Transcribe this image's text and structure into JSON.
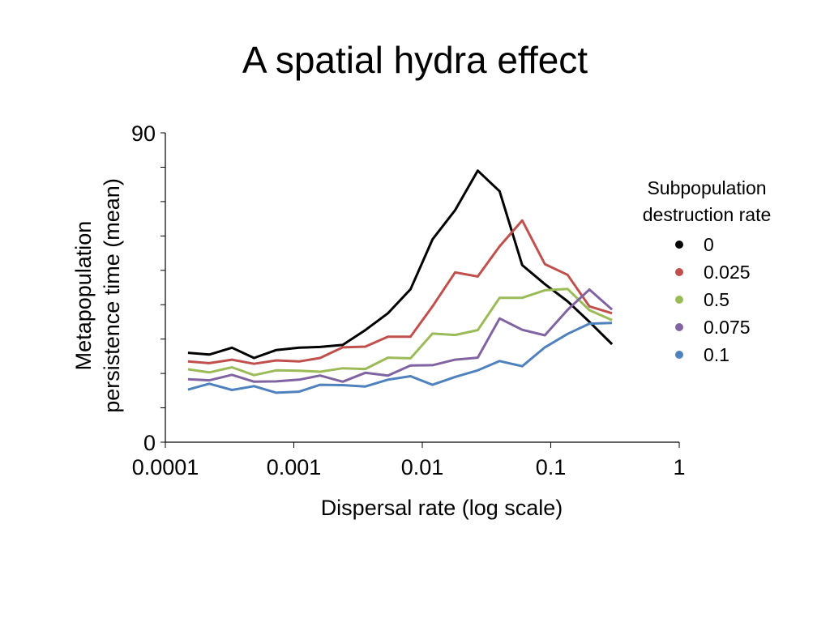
{
  "title": "A spatial hydra effect",
  "chart_data": {
    "type": "line",
    "title": "A spatial hydra effect",
    "xlabel": "Dispersal rate (log scale)",
    "ylabel_lines": [
      "Metapopulation",
      "persistence time (mean)"
    ],
    "x_scale": "log",
    "xlim": [
      0.0001,
      1
    ],
    "ylim": [
      0,
      90
    ],
    "x_tick_labels": [
      "0.0001",
      "0.001",
      "0.01",
      "0.1",
      "1"
    ],
    "x_tick_values": [
      0.0001,
      0.001,
      0.01,
      0.1,
      1
    ],
    "y_tick_labels": [
      "0",
      "90"
    ],
    "y_tick_values": [
      0,
      90
    ],
    "y_minor_step": 10,
    "grid": false,
    "legend": {
      "title_lines": [
        "Subpopulation",
        "destruction rate"
      ],
      "placement": "right"
    },
    "x": [
      0.00015,
      0.00022,
      0.00033,
      0.00049,
      0.00073,
      0.0011,
      0.0016,
      0.0024,
      0.0036,
      0.0054,
      0.0081,
      0.012,
      0.018,
      0.027,
      0.04,
      0.06,
      0.09,
      0.135,
      0.2,
      0.3
    ],
    "series": [
      {
        "name": "0",
        "color": "#000000",
        "values": [
          26,
          25.5,
          27.5,
          24.5,
          26.8,
          27.5,
          27.7,
          28.3,
          32.6,
          37.5,
          44.5,
          59,
          67.5,
          79,
          73,
          51.5,
          46,
          41,
          35,
          28.5
        ]
      },
      {
        "name": "0.025",
        "color": "#c0504d",
        "values": [
          23.5,
          23,
          24,
          22.8,
          23.8,
          23.5,
          24.5,
          27.6,
          27.8,
          30.7,
          30.7,
          39.5,
          49.4,
          48.2,
          57,
          64.5,
          51.8,
          48.7,
          39.5,
          37.5
        ]
      },
      {
        "name": "0.5",
        "color": "#9bbb59",
        "values": [
          21.2,
          20.3,
          21.8,
          19.5,
          20.9,
          20.8,
          20.5,
          21.5,
          21.3,
          24.6,
          24.4,
          31.6,
          31.2,
          32.6,
          42,
          42,
          44.2,
          44.6,
          38.4,
          35.5
        ]
      },
      {
        "name": "0.075",
        "color": "#8064a2",
        "values": [
          18.3,
          18,
          19.6,
          17.6,
          17.7,
          18.2,
          19.4,
          17.6,
          20.2,
          19.4,
          22.3,
          22.4,
          24,
          24.6,
          36,
          32.7,
          31.1,
          38.5,
          44.4,
          38.6
        ]
      },
      {
        "name": "0.1",
        "color": "#4f81bd",
        "values": [
          15.3,
          17,
          15.2,
          16.3,
          14.4,
          14.7,
          16.7,
          16.6,
          16.2,
          18.2,
          19.2,
          16.7,
          19,
          20.9,
          23.6,
          22.1,
          27.6,
          31.5,
          34.5,
          34.7
        ]
      }
    ]
  }
}
